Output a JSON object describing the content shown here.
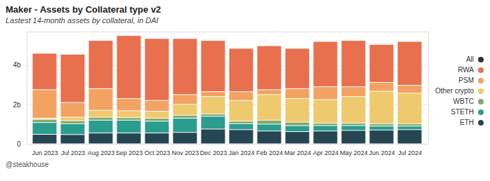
{
  "chart_data": {
    "type": "bar",
    "title": "Maker - Assets by Collateral type v2",
    "subtitle": "Lastest 14-month assets by collateral, in DAI",
    "caption": "@steakhouse",
    "stacked": true,
    "grid": true,
    "legend": "right",
    "categories": [
      "Jun 2023",
      "Jul 2023",
      "Aug 2023",
      "Sep 2023",
      "Oct 2023",
      "Nov 2023",
      "Dec 2023",
      "Jan 2024",
      "Feb 2024",
      "Mar 2024",
      "Apr 2024",
      "May 2024",
      "Jun 2024",
      "Jul 2024"
    ],
    "ylim": [
      0,
      5.7
    ],
    "yticks": [
      0,
      {
        "value": 2,
        "label": "2b"
      },
      {
        "value": 4,
        "label": "4b"
      }
    ],
    "series": [
      {
        "name": "All",
        "color": "#2f3337",
        "values": [
          null,
          null,
          null,
          null,
          null,
          null,
          null,
          null,
          null,
          null,
          null,
          null,
          null,
          null
        ]
      },
      {
        "name": "RWA",
        "color": "#e8704f",
        "values": [
          1.85,
          2.45,
          2.45,
          3.2,
          3.15,
          2.85,
          2.6,
          2.2,
          2.23,
          2.05,
          2.3,
          2.35,
          1.93,
          2.23
        ]
      },
      {
        "name": "PSM",
        "color": "#f3a262",
        "values": [
          1.45,
          0.75,
          1.1,
          0.62,
          0.55,
          0.5,
          0.25,
          0.45,
          0.25,
          0.5,
          0.65,
          0.5,
          0.45,
          0.4
        ]
      },
      {
        "name": "Other crypto",
        "color": "#eec96d",
        "values": [
          0.06,
          0.18,
          0.35,
          0.35,
          0.35,
          0.55,
          0.88,
          1.05,
          1.3,
          1.2,
          1.2,
          1.35,
          1.65,
          1.55
        ]
      },
      {
        "name": "WBTC",
        "color": "#85a86b",
        "values": [
          0.16,
          0.15,
          0.15,
          0.13,
          0.15,
          0.15,
          0.12,
          0.13,
          0.2,
          0.18,
          0.12,
          0.12,
          0.12,
          0.12
        ]
      },
      {
        "name": "STETH",
        "color": "#2a9d8f",
        "values": [
          0.6,
          0.55,
          0.65,
          0.65,
          0.6,
          0.72,
          0.65,
          0.3,
          0.35,
          0.3,
          0.28,
          0.25,
          0.2,
          0.18
        ]
      },
      {
        "name": "ETH",
        "color": "#264653",
        "values": [
          0.48,
          0.47,
          0.55,
          0.55,
          0.55,
          0.58,
          0.75,
          0.72,
          0.65,
          0.62,
          0.65,
          0.68,
          0.7,
          0.72
        ]
      }
    ]
  }
}
